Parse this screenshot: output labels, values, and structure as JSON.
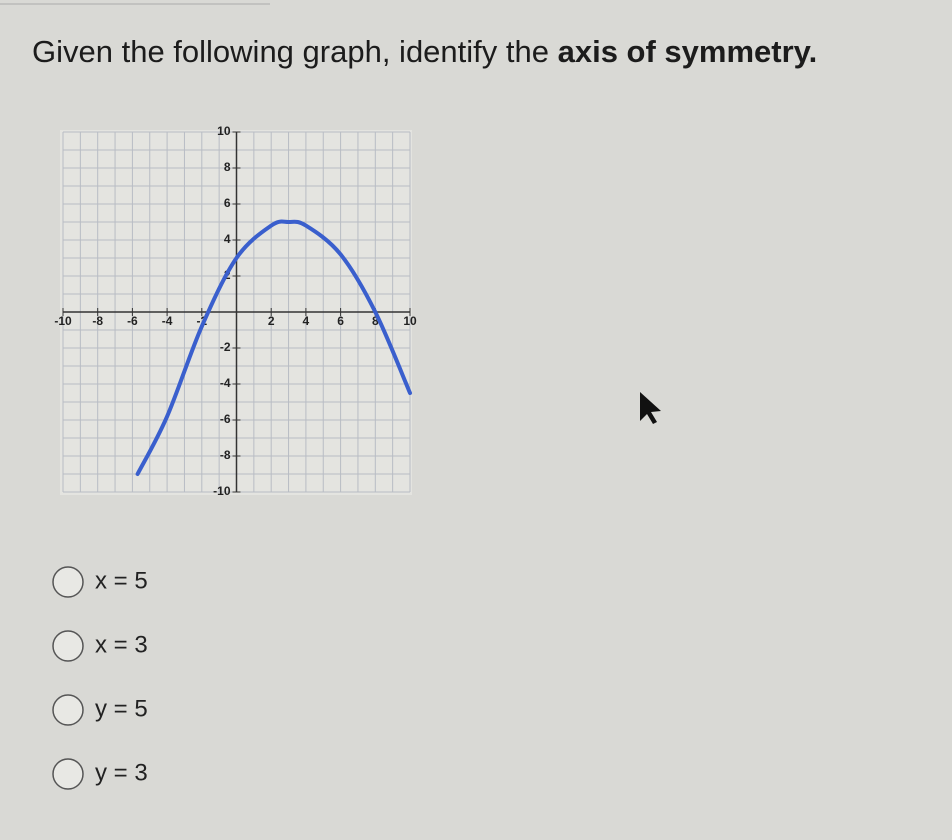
{
  "question": {
    "text": "Given the following graph, identify the ",
    "emphasis": "axis of symmetry."
  },
  "chart_data": {
    "type": "line",
    "x": [
      -5.7,
      -4,
      -2,
      0,
      2,
      3,
      4,
      6,
      8,
      10
    ],
    "series": [
      {
        "color": "#3a5fcd",
        "values": [
          -9,
          -5.8,
          -0.8,
          3,
          4.8,
          5,
          4.8,
          3.2,
          0,
          -4.5
        ]
      }
    ],
    "xlim": [
      -10,
      10
    ],
    "ylim": [
      -10,
      10
    ],
    "xticks": [
      -10,
      -8,
      -6,
      -4,
      -2,
      2,
      4,
      6,
      8,
      10
    ],
    "yticks": [
      -10,
      -8,
      -6,
      -4,
      -2,
      2,
      4,
      6,
      8,
      10
    ],
    "grid": true
  },
  "options": [
    "x = 5",
    "x = 3",
    "y = 5",
    "y = 3"
  ]
}
